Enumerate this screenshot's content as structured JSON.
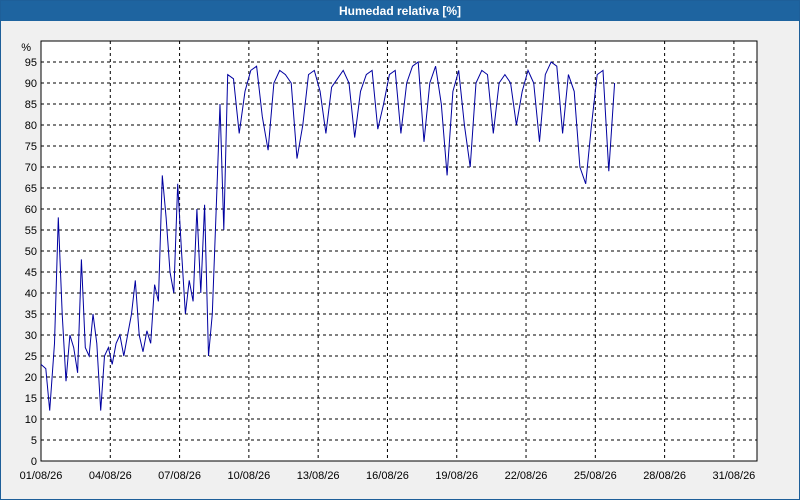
{
  "window": {
    "title": "Humedad relativa [%]"
  },
  "colors": {
    "title_bar": "#1e64a0",
    "series": "#0000a0",
    "grid": "#000000",
    "plot_bg": "#ffffff"
  },
  "chart_data": {
    "type": "line",
    "title": "Humedad relativa [%]",
    "ylabel": "%",
    "xlabel": "",
    "ylim": [
      0,
      100
    ],
    "xlim": [
      "2026-08-01",
      "2026-09-01"
    ],
    "yticks": [
      0,
      5,
      10,
      15,
      20,
      25,
      30,
      35,
      40,
      45,
      50,
      55,
      60,
      65,
      70,
      75,
      80,
      85,
      90,
      95
    ],
    "xticks": [
      "01/08/26",
      "04/08/26",
      "07/08/26",
      "10/08/26",
      "13/08/26",
      "16/08/26",
      "19/08/26",
      "22/08/26",
      "25/08/26",
      "28/08/26",
      "31/08/26"
    ],
    "xtick_dates": [
      "2026-08-01",
      "2026-08-04",
      "2026-08-07",
      "2026-08-10",
      "2026-08-13",
      "2026-08-16",
      "2026-08-19",
      "2026-08-22",
      "2026-08-25",
      "2026-08-28",
      "2026-08-31"
    ],
    "grid": true,
    "series": [
      {
        "name": "",
        "points": [
          [
            "2026-08-01 00:00",
            23
          ],
          [
            "2026-08-01 05:00",
            22
          ],
          [
            "2026-08-01 09:00",
            12
          ],
          [
            "2026-08-01 14:00",
            28
          ],
          [
            "2026-08-01 18:00",
            58
          ],
          [
            "2026-08-01 22:00",
            35
          ],
          [
            "2026-08-02 02:00",
            19
          ],
          [
            "2026-08-02 06:00",
            30
          ],
          [
            "2026-08-02 10:00",
            27
          ],
          [
            "2026-08-02 14:00",
            21
          ],
          [
            "2026-08-02 18:00",
            48
          ],
          [
            "2026-08-02 22:00",
            27
          ],
          [
            "2026-08-03 02:00",
            25
          ],
          [
            "2026-08-03 06:00",
            35
          ],
          [
            "2026-08-03 10:00",
            28
          ],
          [
            "2026-08-03 14:00",
            12
          ],
          [
            "2026-08-03 18:00",
            25
          ],
          [
            "2026-08-03 22:00",
            27
          ],
          [
            "2026-08-04 02:00",
            23
          ],
          [
            "2026-08-04 06:00",
            28
          ],
          [
            "2026-08-04 10:00",
            30
          ],
          [
            "2026-08-04 14:00",
            25
          ],
          [
            "2026-08-04 18:00",
            30
          ],
          [
            "2026-08-04 22:00",
            35
          ],
          [
            "2026-08-05 02:00",
            43
          ],
          [
            "2026-08-05 06:00",
            30
          ],
          [
            "2026-08-05 10:00",
            26
          ],
          [
            "2026-08-05 14:00",
            31
          ],
          [
            "2026-08-05 18:00",
            28
          ],
          [
            "2026-08-05 22:00",
            42
          ],
          [
            "2026-08-06 02:00",
            38
          ],
          [
            "2026-08-06 06:00",
            68
          ],
          [
            "2026-08-06 10:00",
            58
          ],
          [
            "2026-08-06 14:00",
            45
          ],
          [
            "2026-08-06 18:00",
            40
          ],
          [
            "2026-08-06 22:00",
            66
          ],
          [
            "2026-08-07 02:00",
            50
          ],
          [
            "2026-08-07 06:00",
            35
          ],
          [
            "2026-08-07 10:00",
            43
          ],
          [
            "2026-08-07 14:00",
            38
          ],
          [
            "2026-08-07 18:00",
            60
          ],
          [
            "2026-08-07 22:00",
            40
          ],
          [
            "2026-08-08 02:00",
            61
          ],
          [
            "2026-08-08 06:00",
            25
          ],
          [
            "2026-08-08 10:00",
            35
          ],
          [
            "2026-08-08 14:00",
            60
          ],
          [
            "2026-08-08 18:00",
            85
          ],
          [
            "2026-08-08 22:00",
            55
          ],
          [
            "2026-08-09 02:00",
            92
          ],
          [
            "2026-08-09 08:00",
            91
          ],
          [
            "2026-08-09 14:00",
            78
          ],
          [
            "2026-08-09 20:00",
            88
          ],
          [
            "2026-08-10 02:00",
            93
          ],
          [
            "2026-08-10 08:00",
            94
          ],
          [
            "2026-08-10 14:00",
            82
          ],
          [
            "2026-08-10 20:00",
            74
          ],
          [
            "2026-08-11 02:00",
            90
          ],
          [
            "2026-08-11 08:00",
            93
          ],
          [
            "2026-08-11 14:00",
            92
          ],
          [
            "2026-08-11 20:00",
            90
          ],
          [
            "2026-08-12 02:00",
            72
          ],
          [
            "2026-08-12 08:00",
            80
          ],
          [
            "2026-08-12 14:00",
            92
          ],
          [
            "2026-08-12 20:00",
            93
          ],
          [
            "2026-08-13 02:00",
            88
          ],
          [
            "2026-08-13 08:00",
            78
          ],
          [
            "2026-08-13 14:00",
            89
          ],
          [
            "2026-08-13 20:00",
            91
          ],
          [
            "2026-08-14 02:00",
            93
          ],
          [
            "2026-08-14 08:00",
            90
          ],
          [
            "2026-08-14 14:00",
            77
          ],
          [
            "2026-08-14 20:00",
            88
          ],
          [
            "2026-08-15 02:00",
            92
          ],
          [
            "2026-08-15 08:00",
            93
          ],
          [
            "2026-08-15 14:00",
            79
          ],
          [
            "2026-08-15 20:00",
            85
          ],
          [
            "2026-08-16 02:00",
            92
          ],
          [
            "2026-08-16 08:00",
            93
          ],
          [
            "2026-08-16 14:00",
            78
          ],
          [
            "2026-08-16 20:00",
            90
          ],
          [
            "2026-08-17 02:00",
            94
          ],
          [
            "2026-08-17 08:00",
            95
          ],
          [
            "2026-08-17 14:00",
            76
          ],
          [
            "2026-08-17 20:00",
            90
          ],
          [
            "2026-08-18 02:00",
            94
          ],
          [
            "2026-08-18 08:00",
            85
          ],
          [
            "2026-08-18 14:00",
            68
          ],
          [
            "2026-08-18 20:00",
            88
          ],
          [
            "2026-08-19 02:00",
            93
          ],
          [
            "2026-08-19 08:00",
            80
          ],
          [
            "2026-08-19 14:00",
            70
          ],
          [
            "2026-08-19 20:00",
            90
          ],
          [
            "2026-08-20 02:00",
            93
          ],
          [
            "2026-08-20 08:00",
            92
          ],
          [
            "2026-08-20 14:00",
            78
          ],
          [
            "2026-08-20 20:00",
            90
          ],
          [
            "2026-08-21 02:00",
            92
          ],
          [
            "2026-08-21 08:00",
            90
          ],
          [
            "2026-08-21 14:00",
            80
          ],
          [
            "2026-08-21 20:00",
            88
          ],
          [
            "2026-08-22 02:00",
            93
          ],
          [
            "2026-08-22 08:00",
            90
          ],
          [
            "2026-08-22 14:00",
            76
          ],
          [
            "2026-08-22 20:00",
            92
          ],
          [
            "2026-08-23 02:00",
            95
          ],
          [
            "2026-08-23 08:00",
            94
          ],
          [
            "2026-08-23 14:00",
            78
          ],
          [
            "2026-08-23 20:00",
            92
          ],
          [
            "2026-08-24 02:00",
            88
          ],
          [
            "2026-08-24 08:00",
            70
          ],
          [
            "2026-08-24 14:00",
            66
          ],
          [
            "2026-08-24 20:00",
            80
          ],
          [
            "2026-08-25 02:00",
            92
          ],
          [
            "2026-08-25 08:00",
            93
          ],
          [
            "2026-08-25 14:00",
            69
          ],
          [
            "2026-08-25 20:00",
            90
          ]
        ]
      }
    ]
  }
}
